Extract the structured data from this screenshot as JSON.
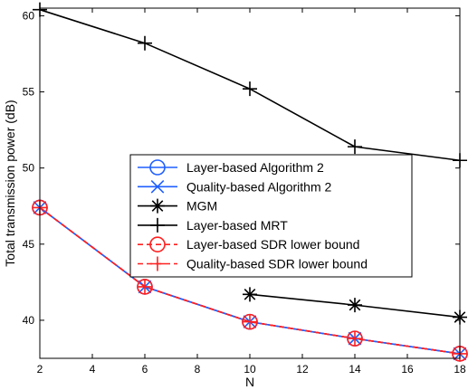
{
  "chart_data": {
    "type": "line",
    "xlabel": "N",
    "ylabel": "Total transmission power (dB)",
    "xlim": [
      2,
      18
    ],
    "ylim": [
      37.5,
      60.5
    ],
    "xticks": [
      2,
      4,
      6,
      8,
      10,
      12,
      14,
      16,
      18
    ],
    "yticks": [
      40,
      45,
      50,
      55,
      60
    ],
    "grid": false,
    "legend_position": "center",
    "series": [
      {
        "name": "Layer-based Algorithm 2",
        "color": "#1f5fff",
        "marker": "circle",
        "dash": "solid",
        "x": [
          2,
          6,
          10,
          14,
          18
        ],
        "y": [
          47.4,
          42.2,
          39.9,
          38.8,
          37.8
        ]
      },
      {
        "name": "Quality-based Algorithm 2",
        "color": "#1f5fff",
        "marker": "x",
        "dash": "solid",
        "x": [
          2,
          6,
          10,
          14,
          18
        ],
        "y": [
          47.4,
          42.2,
          39.9,
          38.8,
          37.8
        ]
      },
      {
        "name": "MGM",
        "color": "#000000",
        "marker": "star",
        "dash": "solid",
        "x": [
          10,
          14,
          18
        ],
        "y": [
          41.7,
          41.0,
          40.2
        ]
      },
      {
        "name": "Layer-based MRT",
        "color": "#000000",
        "marker": "plus",
        "dash": "solid",
        "x": [
          2,
          6,
          10,
          14,
          18
        ],
        "y": [
          60.4,
          58.2,
          55.2,
          51.4,
          50.5
        ]
      },
      {
        "name": "Layer-based SDR lower bound",
        "color": "#ff2020",
        "marker": "circle",
        "dash": "dashed",
        "x": [
          2,
          6,
          10,
          14,
          18
        ],
        "y": [
          47.4,
          42.2,
          39.9,
          38.8,
          37.8
        ]
      },
      {
        "name": "Quality-based SDR lower bound",
        "color": "#ff2020",
        "marker": "plus",
        "dash": "dashed",
        "x": [
          2,
          6,
          10,
          14,
          18
        ],
        "y": [
          47.4,
          42.2,
          39.9,
          38.8,
          37.8
        ]
      }
    ]
  }
}
